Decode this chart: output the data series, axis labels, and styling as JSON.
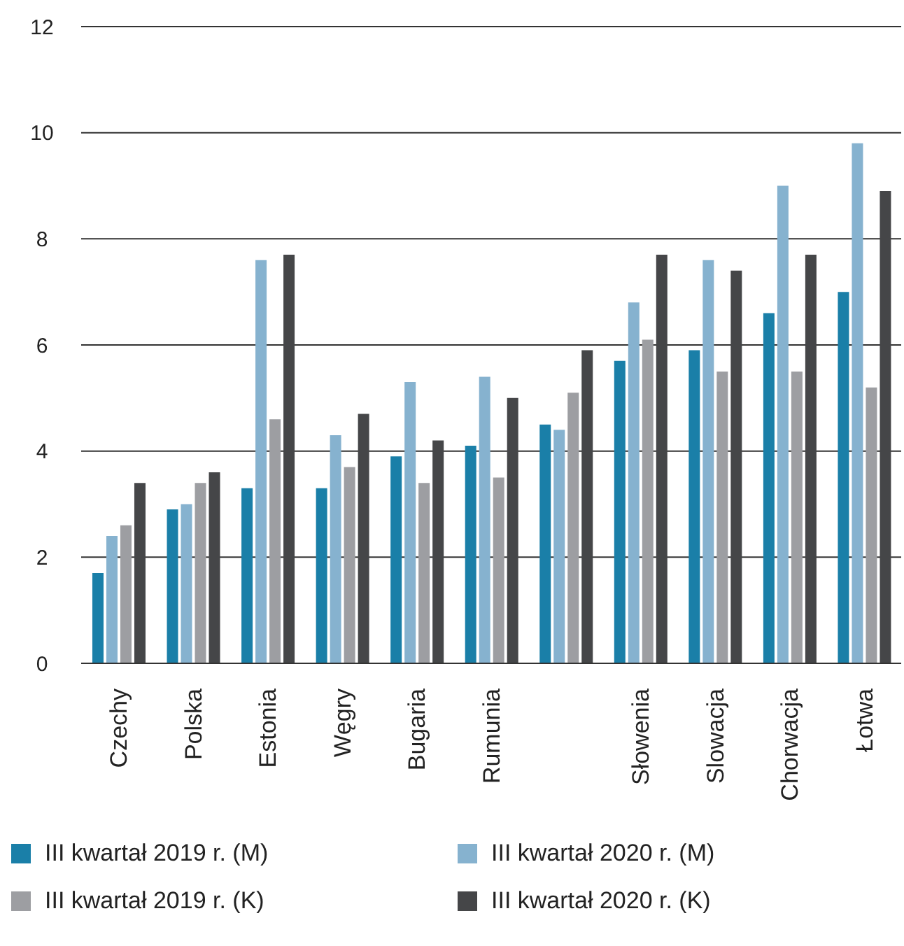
{
  "chart_data": {
    "type": "bar",
    "categories": [
      "Czechy",
      "Polska",
      "Estonia",
      "Węgry",
      "Bugaria",
      "Rumunia",
      null,
      "Słowenia",
      "Slowacja",
      "Chorwacja",
      "Łotwa"
    ],
    "series": [
      {
        "name": "III kwartał 2019 r. (M)",
        "color": "#1a7fa8",
        "values": [
          1.7,
          2.9,
          3.3,
          3.3,
          3.9,
          4.1,
          4.5,
          5.7,
          5.9,
          6.6,
          7.0
        ]
      },
      {
        "name": "III kwartał 2020 r. (M)",
        "color": "#86b2cf",
        "values": [
          2.4,
          3.0,
          7.6,
          4.3,
          5.3,
          5.4,
          4.4,
          6.8,
          7.6,
          9.0,
          9.8
        ]
      },
      {
        "name": "III kwartał 2019 r. (K)",
        "color": "#9d9ea2",
        "values": [
          2.6,
          3.4,
          4.6,
          3.7,
          3.4,
          3.5,
          5.1,
          6.1,
          5.5,
          5.5,
          5.2
        ]
      },
      {
        "name": "III kwartał 2020 r. (K)",
        "color": "#454648",
        "values": [
          3.4,
          3.6,
          7.7,
          4.7,
          4.2,
          5.0,
          5.9,
          7.7,
          7.4,
          7.7,
          8.9
        ]
      }
    ],
    "ylim": [
      0,
      12
    ],
    "yticks": [
      0,
      2,
      4,
      6,
      8,
      10,
      12
    ],
    "grid": "y",
    "legend": "bottom"
  }
}
